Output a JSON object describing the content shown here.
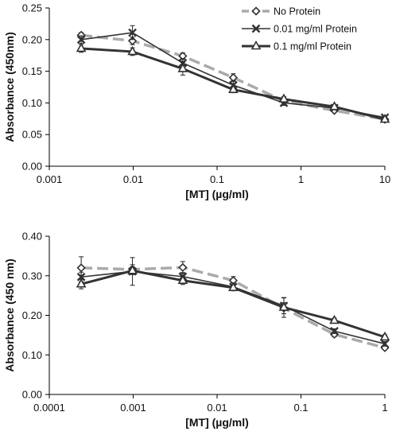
{
  "chart_data": [
    {
      "type": "line",
      "title": "",
      "xlabel": "[MT] (µg/ml)",
      "ylabel": "Absorbance (450nm)",
      "xscale": "log",
      "xlim": [
        0.001,
        10
      ],
      "ylim": [
        0,
        0.25
      ],
      "xticks": [
        0.001,
        0.01,
        0.1,
        1,
        10
      ],
      "xtick_labels": [
        "0.001",
        "0.01",
        "0.1",
        "1",
        "10"
      ],
      "yticks": [
        0,
        0.05,
        0.1,
        0.15,
        0.2,
        0.25
      ],
      "ytick_labels": [
        "0.00",
        "0.05",
        "0.10",
        "0.15",
        "0.20",
        "0.25"
      ],
      "grid": false,
      "legend": "top-right",
      "x": [
        0.0024,
        0.0098,
        0.039,
        0.156,
        0.625,
        2.5,
        10
      ],
      "series": [
        {
          "name": "No Protein",
          "values": [
            0.207,
            0.198,
            0.174,
            0.14,
            0.103,
            0.088,
            0.074
          ],
          "errors": [
            0.004,
            0.006,
            0.005,
            0.006,
            0.003,
            0.002,
            0.003
          ],
          "color": "#aaaaaa",
          "marker": "diamond",
          "line": "dashed"
        },
        {
          "name": "0.01 mg/ml Protein",
          "values": [
            0.2,
            0.211,
            0.163,
            0.128,
            0.1,
            0.092,
            0.077
          ],
          "errors": [
            0.006,
            0.011,
            0.007,
            0.007,
            0.004,
            0.003,
            0.003
          ],
          "color": "#333333",
          "marker": "x",
          "line": "solid"
        },
        {
          "name": "0.1 mg/ml Protein",
          "values": [
            0.186,
            0.181,
            0.154,
            0.121,
            0.106,
            0.094,
            0.074
          ],
          "errors": [
            0.006,
            0.006,
            0.01,
            0.005,
            0.004,
            0.003,
            0.004
          ],
          "color": "#333333",
          "marker": "triangle",
          "line": "solid"
        }
      ]
    },
    {
      "type": "line",
      "title": "",
      "xlabel": "[MT] (µg/ml)",
      "ylabel": "Absorbance (450 nm)",
      "xscale": "log",
      "xlim": [
        0.0001,
        1
      ],
      "ylim": [
        0,
        0.4
      ],
      "xticks": [
        0.0001,
        0.001,
        0.01,
        0.1,
        1
      ],
      "xtick_labels": [
        "0.0001",
        "0.001",
        "0.01",
        "0.1",
        "1"
      ],
      "yticks": [
        0,
        0.1,
        0.2,
        0.3,
        0.4
      ],
      "ytick_labels": [
        "0.00",
        "0.10",
        "0.20",
        "0.30",
        "0.40"
      ],
      "grid": false,
      "legend": "none",
      "x": [
        0.00024,
        0.00098,
        0.0039,
        0.0156,
        0.0625,
        0.25,
        1
      ],
      "series": [
        {
          "name": "No Protein",
          "values": [
            0.32,
            0.316,
            0.321,
            0.288,
            0.218,
            0.152,
            0.118
          ],
          "errors": [
            0.028,
            0.012,
            0.015,
            0.01,
            0.014,
            0.006,
            0.005
          ],
          "color": "#aaaaaa",
          "marker": "diamond",
          "line": "dashed"
        },
        {
          "name": "0.01 mg/ml Protein",
          "values": [
            0.297,
            0.311,
            0.298,
            0.272,
            0.224,
            0.16,
            0.128
          ],
          "errors": [
            0.012,
            0.035,
            0.01,
            0.01,
            0.02,
            0.006,
            0.006
          ],
          "color": "#333333",
          "marker": "x",
          "line": "solid"
        },
        {
          "name": "0.1 mg/ml Protein",
          "values": [
            0.279,
            0.313,
            0.288,
            0.27,
            0.22,
            0.187,
            0.145
          ],
          "errors": [
            0.012,
            0.01,
            0.01,
            0.008,
            0.025,
            0.006,
            0.006
          ],
          "color": "#333333",
          "marker": "triangle",
          "line": "solid"
        }
      ]
    }
  ]
}
